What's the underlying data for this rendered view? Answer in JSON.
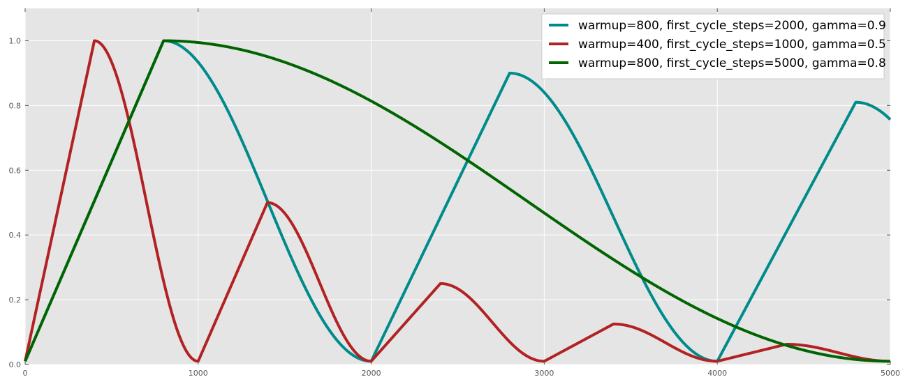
{
  "chart_data": {
    "type": "line",
    "title": "",
    "xlabel": "",
    "ylabel": "",
    "xlim": [
      0,
      5000
    ],
    "ylim": [
      0,
      1.1
    ],
    "grid": true,
    "legend_position": "top-right",
    "x_ticks": [
      0,
      1000,
      2000,
      3000,
      4000,
      5000
    ],
    "y_ticks": [
      0.0,
      0.2,
      0.4,
      0.6,
      0.8,
      1.0
    ],
    "x_tick_labels": [
      "0",
      "1000",
      "2000",
      "3000",
      "4000",
      "5000"
    ],
    "y_tick_labels": [
      "0.0",
      "0.2",
      "0.4",
      "0.6",
      "0.8",
      "1.0"
    ],
    "series": [
      {
        "name": "warmup=800, first_cycle_steps=2000, gamma=0.9",
        "color": "#008b8b",
        "schedule": {
          "warmup": 800,
          "first_cycle_steps": 2000,
          "gamma": 0.9,
          "min_lr": 0.01,
          "max_lr": 1.0
        }
      },
      {
        "name": "warmup=400, first_cycle_steps=1000, gamma=0.5",
        "color": "#b22222",
        "schedule": {
          "warmup": 400,
          "first_cycle_steps": 1000,
          "gamma": 0.5,
          "min_lr": 0.01,
          "max_lr": 1.0
        }
      },
      {
        "name": "warmup=800, first_cycle_steps=5000, gamma=0.8",
        "color": "#006400",
        "schedule": {
          "warmup": 800,
          "first_cycle_steps": 5000,
          "gamma": 0.8,
          "min_lr": 0.01,
          "max_lr": 1.0
        }
      }
    ]
  }
}
